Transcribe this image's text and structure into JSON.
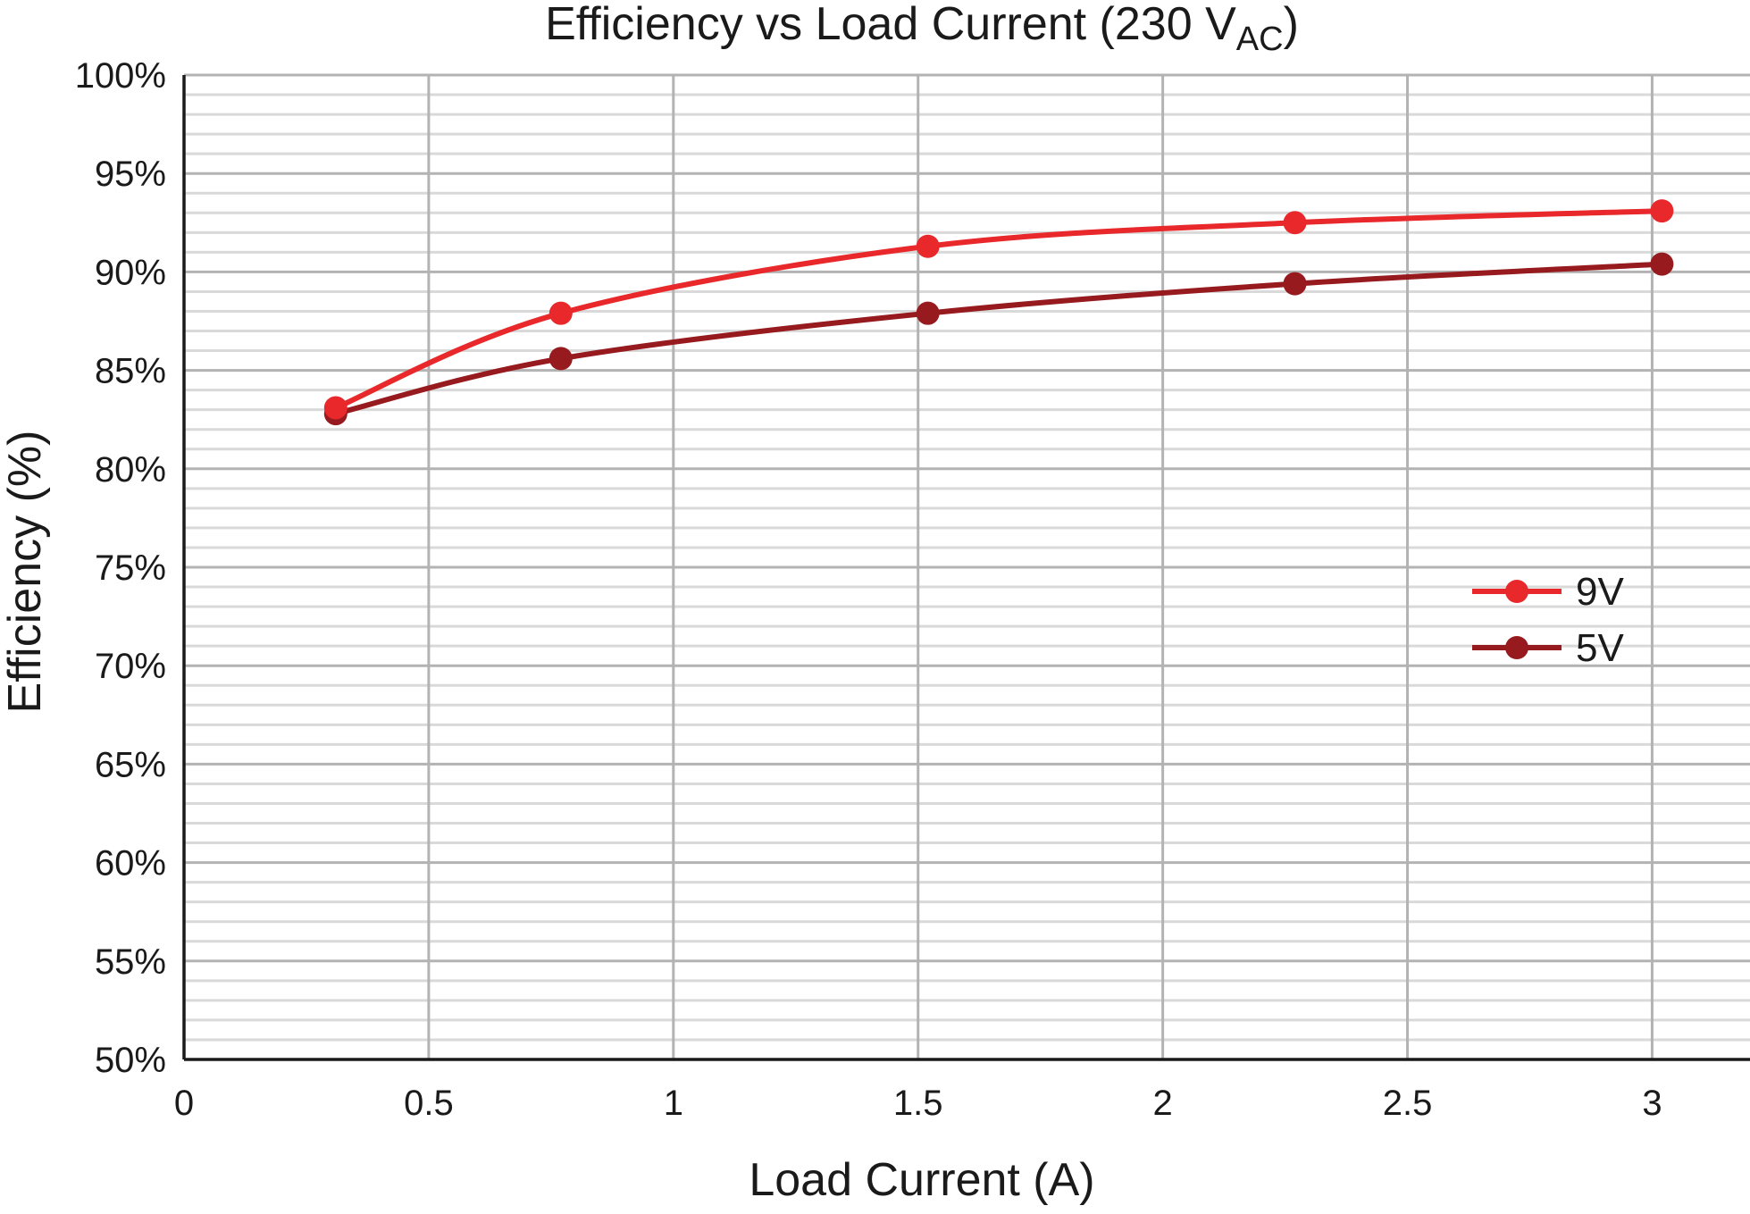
{
  "chart_data": {
    "type": "line",
    "title": {
      "main": "Efficiency vs Load Current (230 V",
      "subscript": "AC",
      "close": ")"
    },
    "xlabel": "Load Current (A)",
    "ylabel": "Efficiency (%)",
    "xlim": [
      0,
      3.2
    ],
    "ylim": [
      50,
      100
    ],
    "x_ticks": [
      0,
      0.5,
      1,
      1.5,
      2,
      2.5,
      3
    ],
    "x_tick_labels": [
      "0",
      "0.5",
      "1",
      "1.5",
      "2",
      "2.5",
      "3"
    ],
    "y_ticks": [
      50,
      55,
      60,
      65,
      70,
      75,
      80,
      85,
      90,
      95,
      100
    ],
    "y_tick_labels": [
      "50%",
      "55%",
      "60%",
      "65%",
      "70%",
      "75%",
      "80%",
      "85%",
      "90%",
      "95%",
      "100%"
    ],
    "minor_y_step": 1,
    "grid": true,
    "legend_position": "right",
    "series": [
      {
        "name": "9V",
        "color": "#e8282a",
        "x": [
          0.31,
          0.77,
          1.52,
          2.27,
          3.02
        ],
        "y": [
          83.1,
          87.9,
          91.3,
          92.5,
          93.1
        ]
      },
      {
        "name": "5V",
        "color": "#961a1e",
        "x": [
          0.31,
          0.77,
          1.52,
          2.27,
          3.02
        ],
        "y": [
          82.8,
          85.6,
          87.9,
          89.4,
          90.4
        ]
      }
    ]
  }
}
